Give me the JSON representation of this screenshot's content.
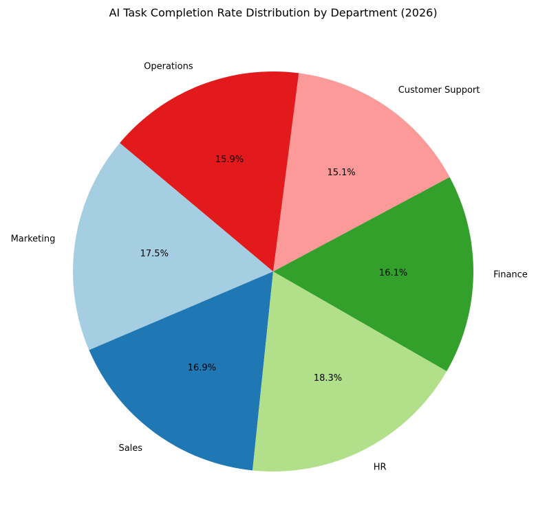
{
  "chart_data": {
    "type": "pie",
    "title": "AI Task Completion Rate Distribution by Department (2026)",
    "start_angle_deg": 140,
    "direction": "counterclockwise",
    "slices": [
      {
        "label": "Marketing",
        "value": 17.5,
        "pct_label": "17.5%",
        "color": "#a6cee3"
      },
      {
        "label": "Sales",
        "value": 16.9,
        "pct_label": "16.9%",
        "color": "#1f78b4"
      },
      {
        "label": "HR",
        "value": 18.3,
        "pct_label": "18.3%",
        "color": "#b2df8a"
      },
      {
        "label": "Finance",
        "value": 16.1,
        "pct_label": "16.1%",
        "color": "#33a02c"
      },
      {
        "label": "Customer Support",
        "value": 15.1,
        "pct_label": "15.1%",
        "color": "#fb9a99"
      },
      {
        "label": "Operations",
        "value": 15.9,
        "pct_label": "15.9%",
        "color": "#e31a1c"
      }
    ]
  }
}
